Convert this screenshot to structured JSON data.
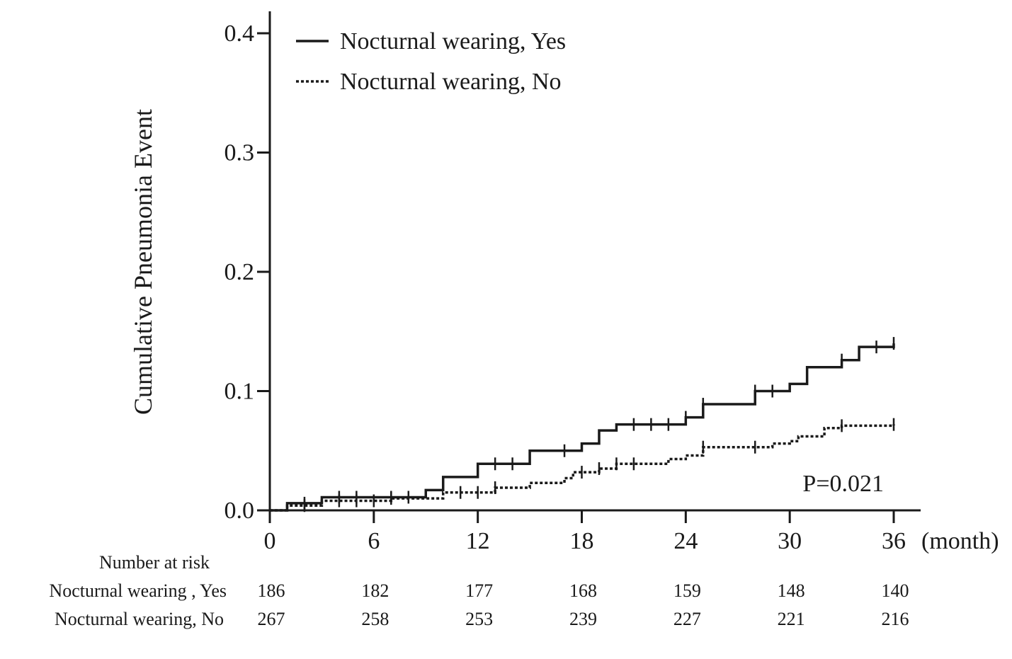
{
  "chart_data": {
    "type": "line",
    "title": "",
    "xlabel": "(month)",
    "ylabel": "Cumulative Pneumonia Event",
    "xlim": [
      0,
      36
    ],
    "ylim": [
      0,
      0.4
    ],
    "x_ticks": [
      "0",
      "6",
      "12",
      "18",
      "24",
      "30",
      "36"
    ],
    "y_ticks": [
      "0.0",
      "0.1",
      "0.2",
      "0.3",
      "0.4"
    ],
    "grid": false,
    "legend_position": "top-left",
    "annotation": "P=0.021",
    "series": [
      {
        "name": "Nocturnal wearing, Yes",
        "style": "solid",
        "color": "#1a1a1a",
        "steps": [
          [
            0,
            0.0
          ],
          [
            1,
            0.006
          ],
          [
            3,
            0.011
          ],
          [
            9,
            0.017
          ],
          [
            10,
            0.028
          ],
          [
            12,
            0.039
          ],
          [
            15,
            0.05
          ],
          [
            18,
            0.056
          ],
          [
            19,
            0.067
          ],
          [
            20,
            0.072
          ],
          [
            24,
            0.078
          ],
          [
            25,
            0.089
          ],
          [
            28,
            0.1
          ],
          [
            30,
            0.106
          ],
          [
            31,
            0.12
          ],
          [
            33,
            0.126
          ],
          [
            34,
            0.137
          ],
          [
            36,
            0.14
          ]
        ],
        "censor_times": [
          2,
          4,
          5,
          7,
          8,
          13,
          14,
          17,
          21,
          22,
          23,
          24,
          25,
          28,
          29,
          33,
          35,
          36
        ]
      },
      {
        "name": "Nocturnal wearing, No",
        "style": "dotted",
        "color": "#1a1a1a",
        "steps": [
          [
            0,
            0.0
          ],
          [
            1,
            0.004
          ],
          [
            3,
            0.008
          ],
          [
            7,
            0.01
          ],
          [
            10,
            0.015
          ],
          [
            13,
            0.019
          ],
          [
            15,
            0.023
          ],
          [
            17,
            0.027
          ],
          [
            17.5,
            0.032
          ],
          [
            19,
            0.035
          ],
          [
            20,
            0.039
          ],
          [
            23,
            0.043
          ],
          [
            24,
            0.046
          ],
          [
            25,
            0.053
          ],
          [
            29,
            0.056
          ],
          [
            30,
            0.058
          ],
          [
            30.5,
            0.062
          ],
          [
            32,
            0.069
          ],
          [
            33,
            0.071
          ],
          [
            36,
            0.072
          ]
        ],
        "censor_times": [
          2,
          4,
          5,
          6,
          7,
          11,
          12,
          13,
          18,
          19,
          20,
          21,
          25,
          28,
          33,
          36
        ]
      }
    ],
    "risk_table": {
      "title": "Number at risk",
      "times": [
        0,
        6,
        12,
        18,
        24,
        30,
        36
      ],
      "rows": [
        {
          "label": "Nocturnal wearing , Yes",
          "values": [
            "186",
            "182",
            "177",
            "168",
            "159",
            "148",
            "140"
          ]
        },
        {
          "label": "Nocturnal wearing, No",
          "values": [
            "267",
            "258",
            "253",
            "239",
            "227",
            "221",
            "216"
          ]
        }
      ]
    }
  }
}
